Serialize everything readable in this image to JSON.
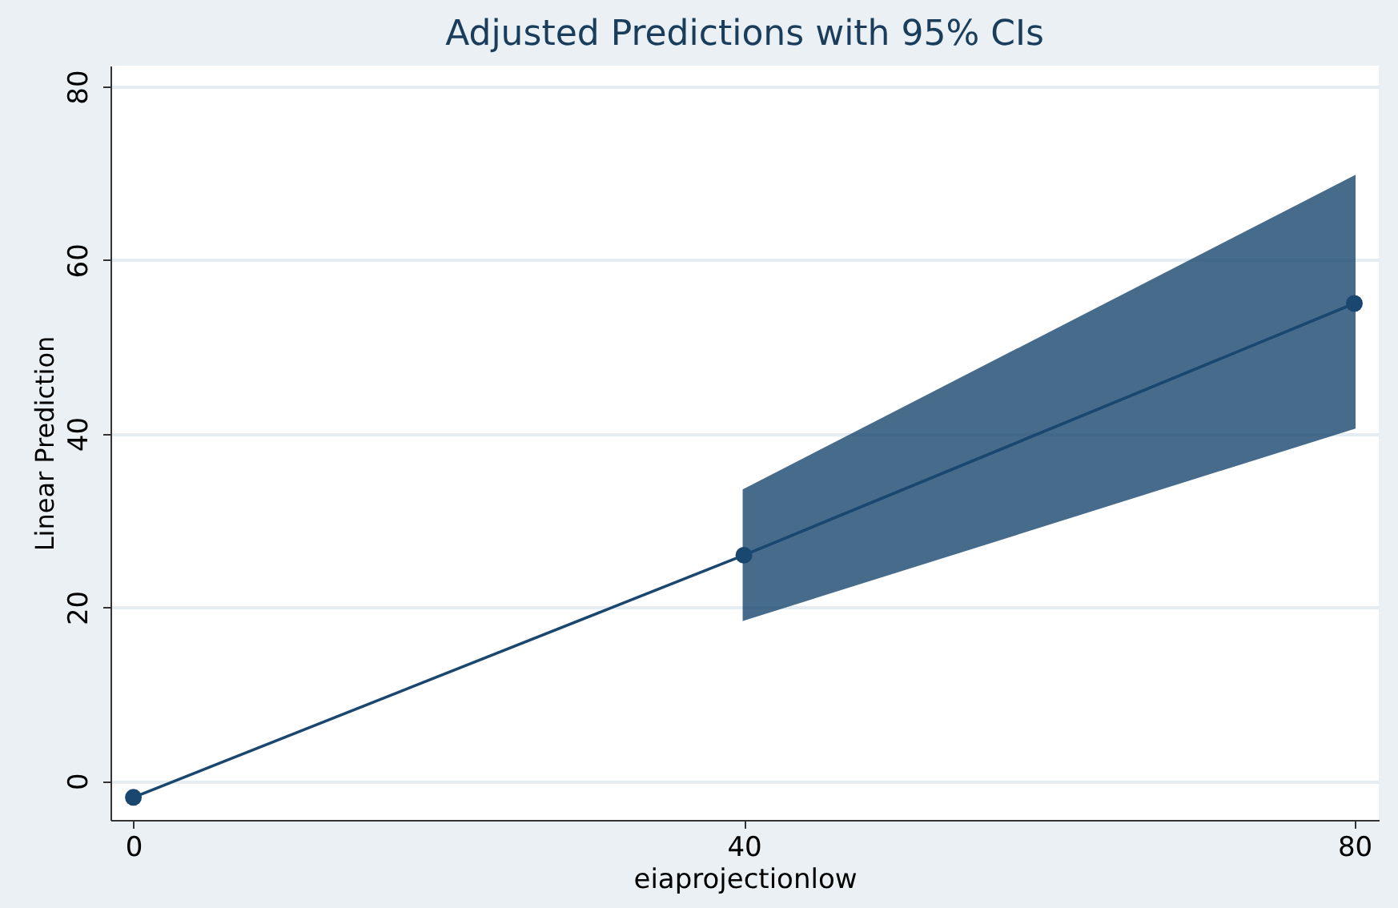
{
  "chart_data": {
    "type": "line",
    "title": "Adjusted Predictions with 95% CIs",
    "xlabel": "eiaprojectionlow",
    "ylabel": "Linear Prediction",
    "x": [
      0,
      40,
      80
    ],
    "series": [
      {
        "color": "#1a476f",
        "values": [
          -1.9,
          26.0,
          55.0
        ],
        "lower": [
          null,
          18.6,
          40.7
        ],
        "upper": [
          null,
          33.5,
          69.6
        ]
      }
    ],
    "xlim": [
      -1.5,
      81.6
    ],
    "ylim": [
      -4.5,
      82.4
    ],
    "xticks": [
      0,
      40,
      80
    ],
    "yticks": [
      0,
      20,
      40,
      60,
      80
    ],
    "grid": "y",
    "marker": "circle",
    "line_style": "solid"
  }
}
